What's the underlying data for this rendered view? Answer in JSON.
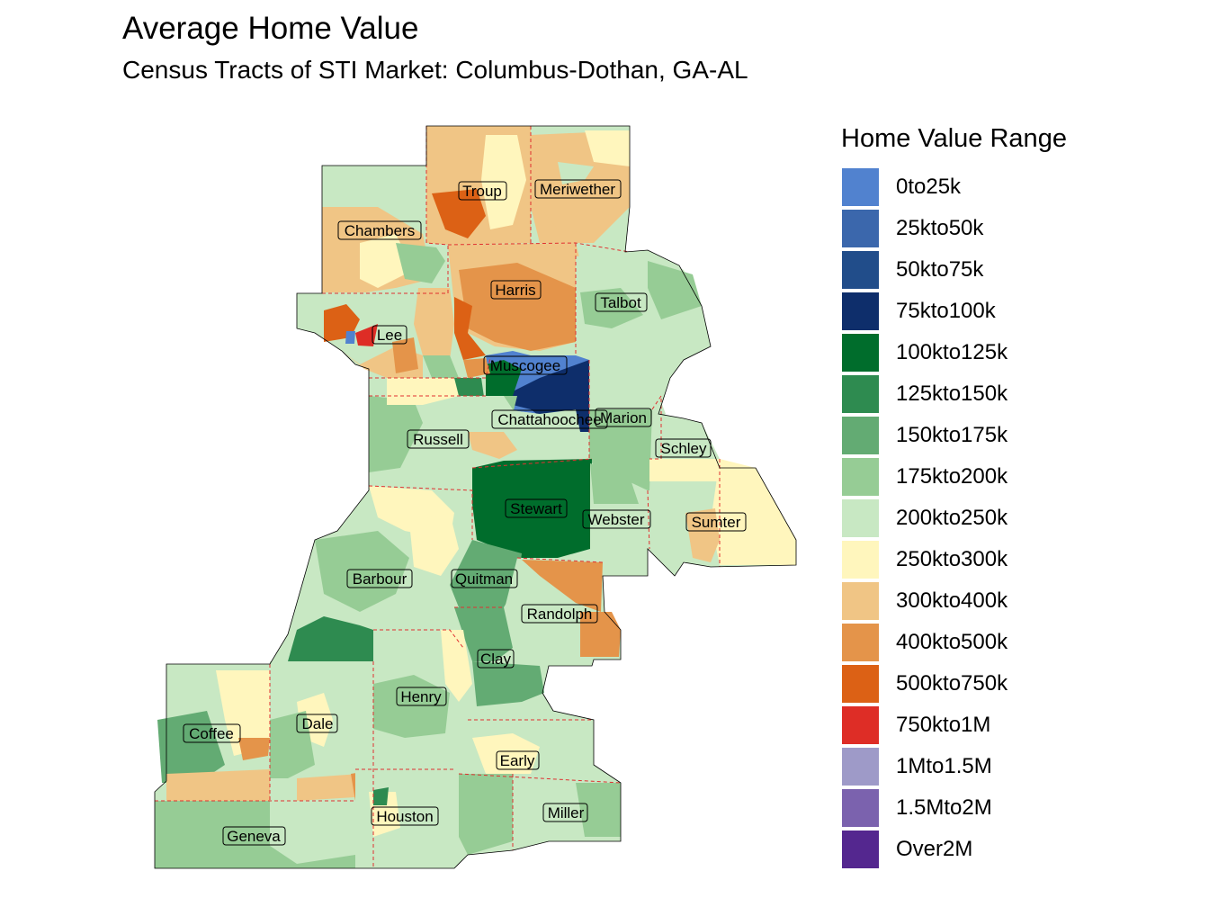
{
  "title": "Average Home Value",
  "subtitle": "Census Tracts of STI Market: Columbus-Dothan,  GA-AL",
  "legend": {
    "title": "Home Value Range",
    "items": [
      {
        "label": "0to25k",
        "color": "#5182CF"
      },
      {
        "label": "25kto50k",
        "color": "#3B67AC"
      },
      {
        "label": "50kto75k",
        "color": "#214D8A"
      },
      {
        "label": "75kto100k",
        "color": "#0E2E6B"
      },
      {
        "label": "100kto125k",
        "color": "#006D2C"
      },
      {
        "label": "125kto150k",
        "color": "#2E8B50"
      },
      {
        "label": "150kto175k",
        "color": "#63AB73"
      },
      {
        "label": "175kto200k",
        "color": "#96CC95"
      },
      {
        "label": "200kto250k",
        "color": "#C8E8C3"
      },
      {
        "label": "250kto300k",
        "color": "#FFF6BD"
      },
      {
        "label": "300kto400k",
        "color": "#F0C585"
      },
      {
        "label": "400kto500k",
        "color": "#E4944A"
      },
      {
        "label": "500kto750k",
        "color": "#DC6115"
      },
      {
        "label": "750kto1M",
        "color": "#DE2D26"
      },
      {
        "label": "1Mto1.5M",
        "color": "#9E9AC8"
      },
      {
        "label": "1.5Mto2M",
        "color": "#7B62AE"
      },
      {
        "label": "Over2M",
        "color": "#54278F"
      }
    ]
  },
  "counties": {
    "troup": "Troup",
    "meriwether": "Meriwether",
    "chambers": "Chambers",
    "harris": "Harris",
    "talbot": "Talbot",
    "lee": "Lee",
    "muscogee": "Muscogee",
    "chattahoochee": "Chattahoochee",
    "marion": "Marion",
    "russell": "Russell",
    "schley": "Schley",
    "stewart": "Stewart",
    "webster": "Webster",
    "sumter": "Sumter",
    "barbour": "Barbour",
    "quitman": "Quitman",
    "randolph": "Randolph",
    "clay": "Clay",
    "henry": "Henry",
    "dale": "Dale",
    "coffee": "Coffee",
    "early": "Early",
    "houston": "Houston",
    "miller": "Miller",
    "geneva": "Geneva"
  }
}
